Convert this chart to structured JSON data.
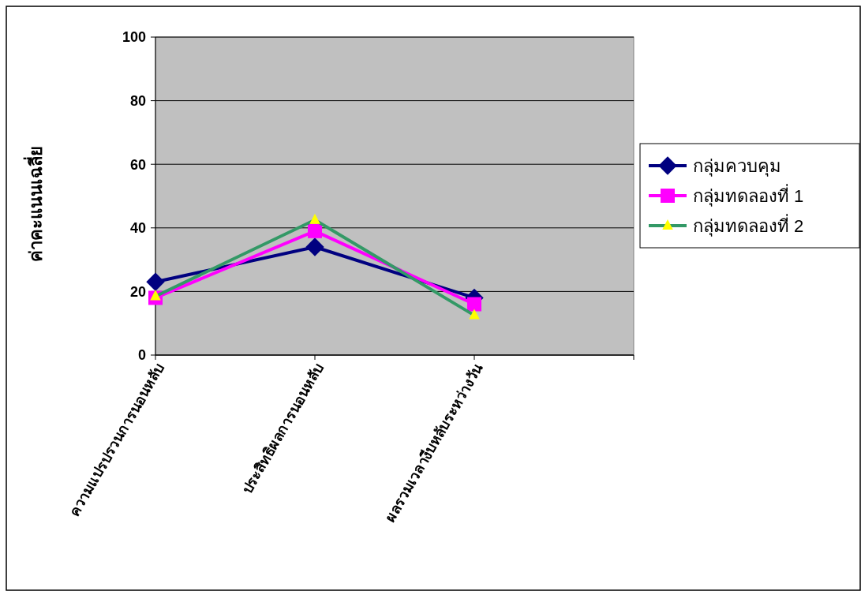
{
  "chart_data": {
    "type": "line",
    "ylabel": "ค่าคะแนนเฉลี่ย",
    "categories": [
      "ความแปรปรวนการนอนหลับ",
      "ประสิทธิผลการนอนหลับ",
      "ผลรวมเวลางีบหลับระหว่างวัน"
    ],
    "series": [
      {
        "name": "กลุ่มควบคุม",
        "color": "#000080",
        "marker": "diamond",
        "colors": [
          "#000080",
          "#000080",
          "#000080"
        ],
        "values": [
          23,
          34,
          18
        ]
      },
      {
        "name": "กลุ่มทดลองที่ 1",
        "color": "#ff00ff",
        "marker": "square",
        "colors": [
          "#ff00ff",
          "#ff00ff",
          "#ff00ff"
        ],
        "values": [
          18,
          39,
          16
        ]
      },
      {
        "name": "กลุ่มทดลองที่ 2",
        "color": "#339966",
        "marker": "triangle",
        "colors": [
          "#ffff00",
          "#ffff00",
          "#ffff00"
        ],
        "values": [
          18.5,
          42.5,
          12.5
        ]
      }
    ],
    "ylim": [
      0,
      100
    ],
    "yticks": [
      0,
      20,
      40,
      60,
      80,
      100
    ],
    "grid": "y",
    "legend": "right",
    "line_style": "solid"
  }
}
